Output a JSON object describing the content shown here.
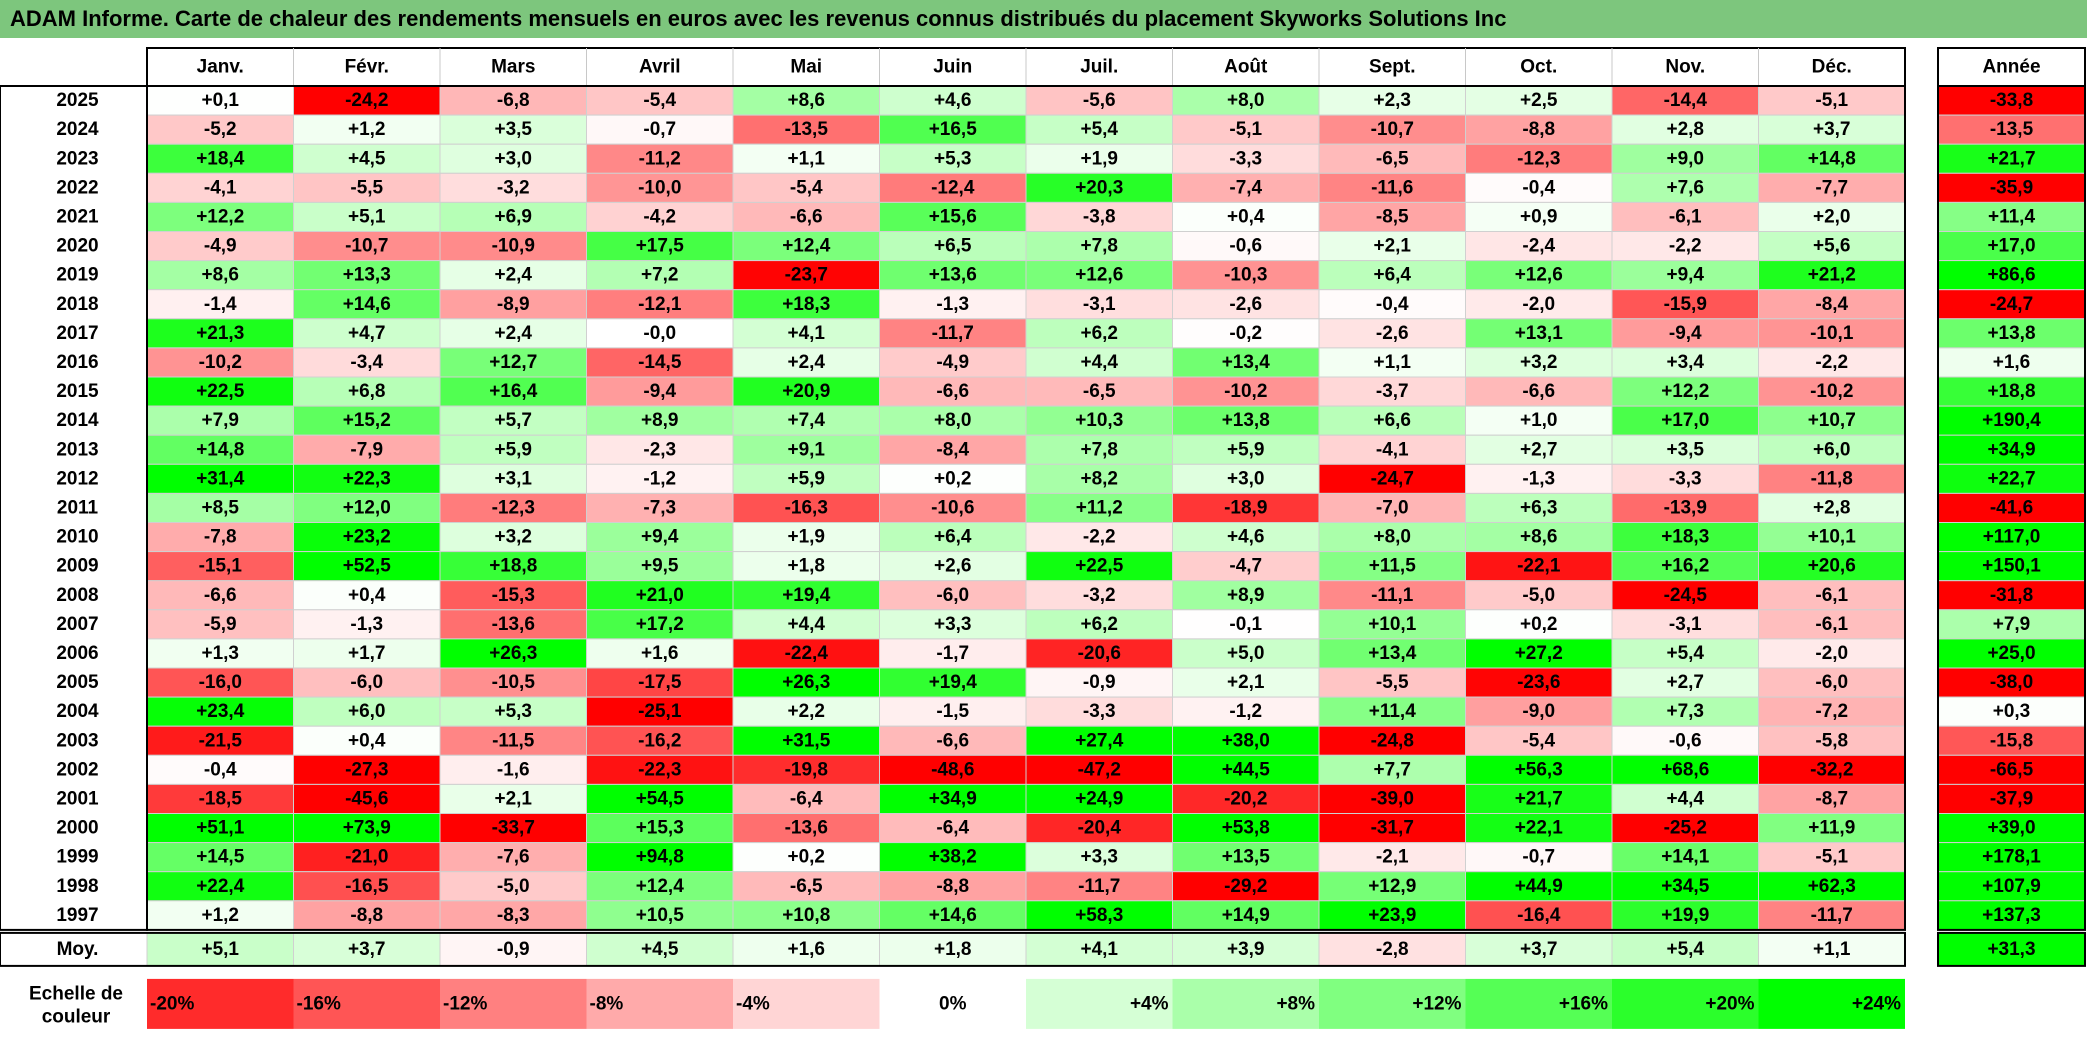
{
  "title": "ADAM Informe. Carte de chaleur des rendements mensuels en euros avec les revenus connus distribués du placement Skyworks Solutions Inc",
  "chart_data": {
    "type": "heatmap",
    "months": [
      "Janv.",
      "Févr.",
      "Mars",
      "Avril",
      "Mai",
      "Juin",
      "Juil.",
      "Août",
      "Sept.",
      "Oct.",
      "Nov.",
      "Déc."
    ],
    "year_header": "Année",
    "rows": [
      {
        "year": "2025",
        "values": [
          "+0,1",
          "-24,2",
          "-6,8",
          "-5,4",
          "+8,6",
          "+4,6",
          "-5,6",
          "+8,0",
          "+2,3",
          "+2,5",
          "-14,4",
          "-5,1"
        ],
        "annual": "-33,8"
      },
      {
        "year": "2024",
        "values": [
          "-5,2",
          "+1,2",
          "+3,5",
          "-0,7",
          "-13,5",
          "+16,5",
          "+5,4",
          "-5,1",
          "-10,7",
          "-8,8",
          "+2,8",
          "+3,7"
        ],
        "annual": "-13,5"
      },
      {
        "year": "2023",
        "values": [
          "+18,4",
          "+4,5",
          "+3,0",
          "-11,2",
          "+1,1",
          "+5,3",
          "+1,9",
          "-3,3",
          "-6,5",
          "-12,3",
          "+9,0",
          "+14,8"
        ],
        "annual": "+21,7"
      },
      {
        "year": "2022",
        "values": [
          "-4,1",
          "-5,5",
          "-3,2",
          "-10,0",
          "-5,4",
          "-12,4",
          "+20,3",
          "-7,4",
          "-11,6",
          "-0,4",
          "+7,6",
          "-7,7"
        ],
        "annual": "-35,9"
      },
      {
        "year": "2021",
        "values": [
          "+12,2",
          "+5,1",
          "+6,9",
          "-4,2",
          "-6,6",
          "+15,6",
          "-3,8",
          "+0,4",
          "-8,5",
          "+0,9",
          "-6,1",
          "+2,0"
        ],
        "annual": "+11,4"
      },
      {
        "year": "2020",
        "values": [
          "-4,9",
          "-10,7",
          "-10,9",
          "+17,5",
          "+12,4",
          "+6,5",
          "+7,8",
          "-0,6",
          "+2,1",
          "-2,4",
          "-2,2",
          "+5,6"
        ],
        "annual": "+17,0"
      },
      {
        "year": "2019",
        "values": [
          "+8,6",
          "+13,3",
          "+2,4",
          "+7,2",
          "-23,7",
          "+13,6",
          "+12,6",
          "-10,3",
          "+6,4",
          "+12,6",
          "+9,4",
          "+21,2"
        ],
        "annual": "+86,6"
      },
      {
        "year": "2018",
        "values": [
          "-1,4",
          "+14,6",
          "-8,9",
          "-12,1",
          "+18,3",
          "-1,3",
          "-3,1",
          "-2,6",
          "-0,4",
          "-2,0",
          "-15,9",
          "-8,4"
        ],
        "annual": "-24,7"
      },
      {
        "year": "2017",
        "values": [
          "+21,3",
          "+4,7",
          "+2,4",
          "-0,0",
          "+4,1",
          "-11,7",
          "+6,2",
          "-0,2",
          "-2,6",
          "+13,1",
          "-9,4",
          "-10,1"
        ],
        "annual": "+13,8"
      },
      {
        "year": "2016",
        "values": [
          "-10,2",
          "-3,4",
          "+12,7",
          "-14,5",
          "+2,4",
          "-4,9",
          "+4,4",
          "+13,4",
          "+1,1",
          "+3,2",
          "+3,4",
          "-2,2"
        ],
        "annual": "+1,6"
      },
      {
        "year": "2015",
        "values": [
          "+22,5",
          "+6,8",
          "+16,4",
          "-9,4",
          "+20,9",
          "-6,6",
          "-6,5",
          "-10,2",
          "-3,7",
          "-6,6",
          "+12,2",
          "-10,2"
        ],
        "annual": "+18,8"
      },
      {
        "year": "2014",
        "values": [
          "+7,9",
          "+15,2",
          "+5,7",
          "+8,9",
          "+7,4",
          "+8,0",
          "+10,3",
          "+13,8",
          "+6,6",
          "+1,0",
          "+17,0",
          "+10,7"
        ],
        "annual": "+190,4"
      },
      {
        "year": "2013",
        "values": [
          "+14,8",
          "-7,9",
          "+5,9",
          "-2,3",
          "+9,1",
          "-8,4",
          "+7,8",
          "+5,9",
          "-4,1",
          "+2,7",
          "+3,5",
          "+6,0"
        ],
        "annual": "+34,9"
      },
      {
        "year": "2012",
        "values": [
          "+31,4",
          "+22,3",
          "+3,1",
          "-1,2",
          "+5,9",
          "+0,2",
          "+8,2",
          "+3,0",
          "-24,7",
          "-1,3",
          "-3,3",
          "-11,8"
        ],
        "annual": "+22,7"
      },
      {
        "year": "2011",
        "values": [
          "+8,5",
          "+12,0",
          "-12,3",
          "-7,3",
          "-16,3",
          "-10,6",
          "+11,2",
          "-18,9",
          "-7,0",
          "+6,3",
          "-13,9",
          "+2,8"
        ],
        "annual": "-41,6"
      },
      {
        "year": "2010",
        "values": [
          "-7,8",
          "+23,2",
          "+3,2",
          "+9,4",
          "+1,9",
          "+6,4",
          "-2,2",
          "+4,6",
          "+8,0",
          "+8,6",
          "+18,3",
          "+10,1"
        ],
        "annual": "+117,0"
      },
      {
        "year": "2009",
        "values": [
          "-15,1",
          "+52,5",
          "+18,8",
          "+9,5",
          "+1,8",
          "+2,6",
          "+22,5",
          "-4,7",
          "+11,5",
          "-22,1",
          "+16,2",
          "+20,6"
        ],
        "annual": "+150,1"
      },
      {
        "year": "2008",
        "values": [
          "-6,6",
          "+0,4",
          "-15,3",
          "+21,0",
          "+19,4",
          "-6,0",
          "-3,2",
          "+8,9",
          "-11,1",
          "-5,0",
          "-24,5",
          "-6,1"
        ],
        "annual": "-31,8"
      },
      {
        "year": "2007",
        "values": [
          "-5,9",
          "-1,3",
          "-13,6",
          "+17,2",
          "+4,4",
          "+3,3",
          "+6,2",
          "-0,1",
          "+10,1",
          "+0,2",
          "-3,1",
          "-6,1"
        ],
        "annual": "+7,9"
      },
      {
        "year": "2006",
        "values": [
          "+1,3",
          "+1,7",
          "+26,3",
          "+1,6",
          "-22,4",
          "-1,7",
          "-20,6",
          "+5,0",
          "+13,4",
          "+27,2",
          "+5,4",
          "-2,0"
        ],
        "annual": "+25,0"
      },
      {
        "year": "2005",
        "values": [
          "-16,0",
          "-6,0",
          "-10,5",
          "-17,5",
          "+26,3",
          "+19,4",
          "-0,9",
          "+2,1",
          "-5,5",
          "-23,6",
          "+2,7",
          "-6,0"
        ],
        "annual": "-38,0"
      },
      {
        "year": "2004",
        "values": [
          "+23,4",
          "+6,0",
          "+5,3",
          "-25,1",
          "+2,2",
          "-1,5",
          "-3,3",
          "-1,2",
          "+11,4",
          "-9,0",
          "+7,3",
          "-7,2"
        ],
        "annual": "+0,3"
      },
      {
        "year": "2003",
        "values": [
          "-21,5",
          "+0,4",
          "-11,5",
          "-16,2",
          "+31,5",
          "-6,6",
          "+27,4",
          "+38,0",
          "-24,8",
          "-5,4",
          "-0,6",
          "-5,8"
        ],
        "annual": "-15,8"
      },
      {
        "year": "2002",
        "values": [
          "-0,4",
          "-27,3",
          "-1,6",
          "-22,3",
          "-19,8",
          "-48,6",
          "-47,2",
          "+44,5",
          "+7,7",
          "+56,3",
          "+68,6",
          "-32,2"
        ],
        "annual": "-66,5"
      },
      {
        "year": "2001",
        "values": [
          "-18,5",
          "-45,6",
          "+2,1",
          "+54,5",
          "-6,4",
          "+34,9",
          "+24,9",
          "-20,2",
          "-39,0",
          "+21,7",
          "+4,4",
          "-8,7"
        ],
        "annual": "-37,9"
      },
      {
        "year": "2000",
        "values": [
          "+51,1",
          "+73,9",
          "-33,7",
          "+15,3",
          "-13,6",
          "-6,4",
          "-20,4",
          "+53,8",
          "-31,7",
          "+22,1",
          "-25,2",
          "+11,9"
        ],
        "annual": "+39,0"
      },
      {
        "year": "1999",
        "values": [
          "+14,5",
          "-21,0",
          "-7,6",
          "+94,8",
          "+0,2",
          "+38,2",
          "+3,3",
          "+13,5",
          "-2,1",
          "-0,7",
          "+14,1",
          "-5,1"
        ],
        "annual": "+178,1"
      },
      {
        "year": "1998",
        "values": [
          "+22,4",
          "-16,5",
          "-5,0",
          "+12,4",
          "-6,5",
          "-8,8",
          "-11,7",
          "-29,2",
          "+12,9",
          "+44,9",
          "+34,5",
          "+62,3"
        ],
        "annual": "+107,9"
      },
      {
        "year": "1997",
        "values": [
          "+1,2",
          "-8,8",
          "-8,3",
          "+10,5",
          "+10,8",
          "+14,6",
          "+58,3",
          "+14,9",
          "+23,9",
          "-16,4",
          "+19,9",
          "-11,7"
        ],
        "annual": "+137,3"
      }
    ],
    "average": {
      "label": "Moy.",
      "values": [
        "+5,1",
        "+3,7",
        "-0,9",
        "+4,5",
        "+1,6",
        "+1,8",
        "+4,1",
        "+3,9",
        "-2,8",
        "+3,7",
        "+5,4",
        "+1,1"
      ],
      "annual": "+31,3"
    },
    "scale": {
      "label_line1": "Echelle de",
      "label_line2": "couleur",
      "steps": [
        "-20%",
        "-16%",
        "-12%",
        "-8%",
        "-4%",
        "0%",
        "+4%",
        "+8%",
        "+12%",
        "+16%",
        "+20%",
        "+24%"
      ],
      "neg_color": "#ff0000",
      "pos_color": "#00ff00",
      "neutral_color": "#ffffff"
    }
  }
}
